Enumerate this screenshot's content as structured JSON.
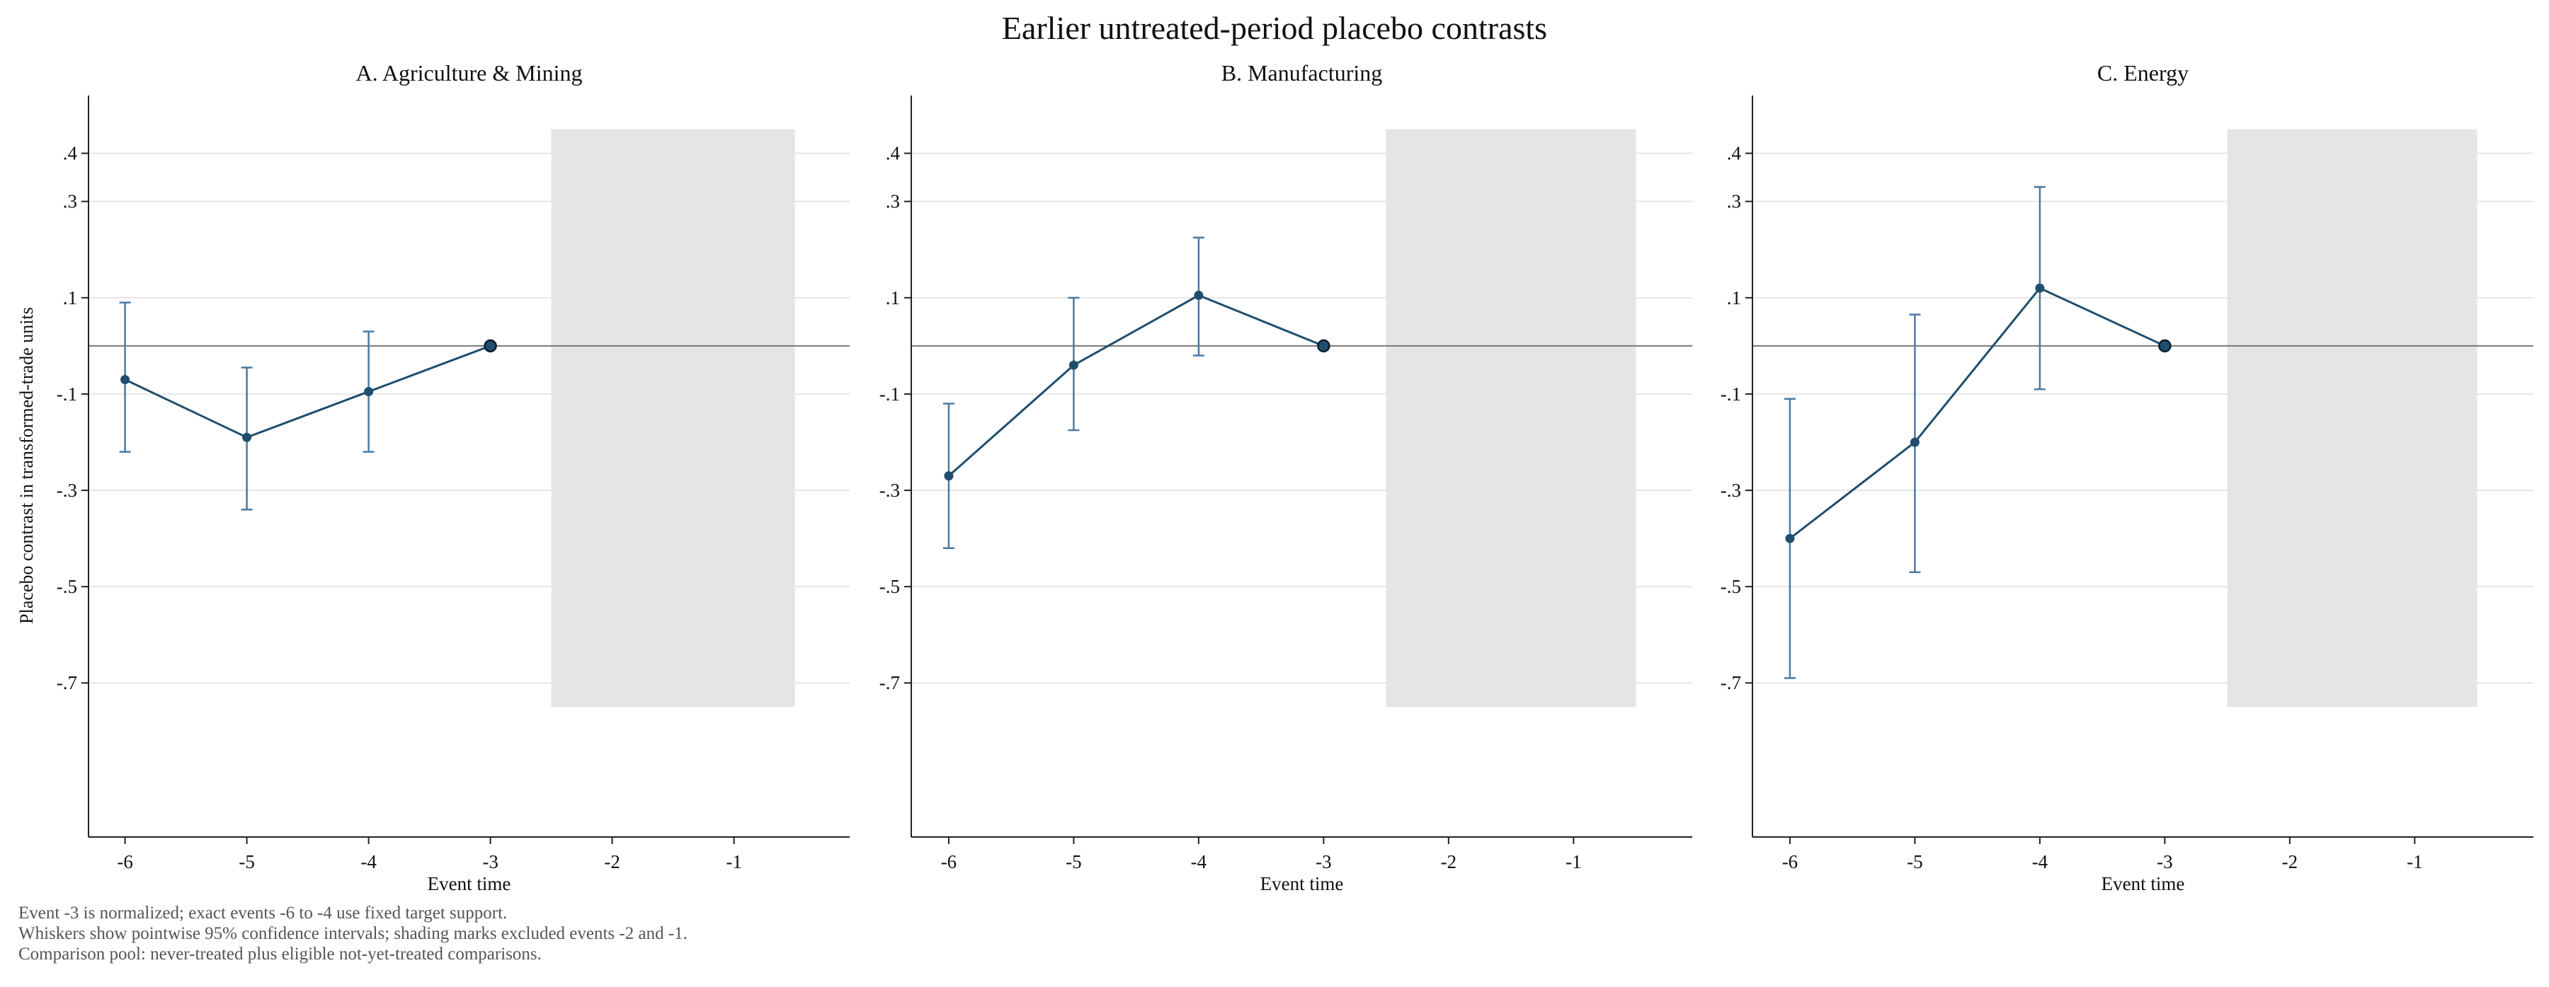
{
  "figure_title": "Earlier untreated-period placebo contrasts",
  "ylabel": "Placebo contrast in transformed-trade units",
  "xlabel": "Event time",
  "notes": [
    "Event -3 is normalized; exact events -6 to -4 use fixed target support.",
    "Whiskers show pointwise 95% confidence intervals; shading marks excluded events -2 and -1.",
    "Comparison pool: never-treated plus eligible not-yet-treated comparisons."
  ],
  "colors": {
    "series": "#1f4e6e",
    "ci": "#4a7aa3",
    "shade": "#e5e5e5",
    "zero": "#777777",
    "grid": "#e6e6e6"
  },
  "chart_data": [
    {
      "type": "line",
      "title": "A. Agriculture & Mining",
      "xlabel": "Event time",
      "ylabel": "Placebo contrast in transformed-trade units",
      "x": [
        -6,
        -5,
        -4,
        -3
      ],
      "y": [
        -0.07,
        -0.19,
        -0.095,
        0.0
      ],
      "ci_low": [
        -0.22,
        -0.34,
        -0.22,
        0.0
      ],
      "ci_high": [
        0.09,
        -0.045,
        0.03,
        0.0
      ],
      "xticks": [
        -6,
        -5,
        -4,
        -3,
        -2,
        -1
      ],
      "yticks": [
        0.4,
        0.3,
        0.1,
        -0.1,
        -0.3,
        -0.5,
        -0.7
      ],
      "ytick_labels": [
        ".4",
        ".3",
        ".1",
        "-.1",
        "-.3",
        "-.5",
        "-.7"
      ],
      "xlim": [
        -6.3,
        -0.05
      ],
      "ylim": [
        -1.02,
        0.52
      ],
      "shaded_region": [
        -2.5,
        -0.5
      ],
      "zero_line": 0,
      "grid": true
    },
    {
      "type": "line",
      "title": "B. Manufacturing",
      "xlabel": "Event time",
      "ylabel": "",
      "x": [
        -6,
        -5,
        -4,
        -3
      ],
      "y": [
        -0.27,
        -0.04,
        0.105,
        0.0
      ],
      "ci_low": [
        -0.42,
        -0.175,
        -0.02,
        0.0
      ],
      "ci_high": [
        -0.12,
        0.1,
        0.225,
        0.0
      ],
      "xticks": [
        -6,
        -5,
        -4,
        -3,
        -2,
        -1
      ],
      "yticks": [
        0.4,
        0.3,
        0.1,
        -0.1,
        -0.3,
        -0.5,
        -0.7
      ],
      "ytick_labels": [
        ".4",
        ".3",
        ".1",
        "-.1",
        "-.3",
        "-.5",
        "-.7"
      ],
      "xlim": [
        -6.3,
        -0.05
      ],
      "ylim": [
        -1.02,
        0.52
      ],
      "shaded_region": [
        -2.5,
        -0.5
      ],
      "zero_line": 0,
      "grid": true
    },
    {
      "type": "line",
      "title": "C. Energy",
      "xlabel": "Event time",
      "ylabel": "",
      "x": [
        -6,
        -5,
        -4,
        -3
      ],
      "y": [
        -0.4,
        -0.2,
        0.12,
        0.0
      ],
      "ci_low": [
        -0.69,
        -0.47,
        -0.09,
        0.0
      ],
      "ci_high": [
        -0.11,
        0.065,
        0.33,
        0.0
      ],
      "xticks": [
        -6,
        -5,
        -4,
        -3,
        -2,
        -1
      ],
      "yticks": [
        0.4,
        0.3,
        0.1,
        -0.1,
        -0.3,
        -0.5,
        -0.7
      ],
      "ytick_labels": [
        ".4",
        ".3",
        ".1",
        "-.1",
        "-.3",
        "-.5",
        "-.7"
      ],
      "xlim": [
        -6.3,
        -0.05
      ],
      "ylim": [
        -1.02,
        0.52
      ],
      "shaded_region": [
        -2.5,
        -0.5
      ],
      "zero_line": 0,
      "grid": true
    }
  ]
}
